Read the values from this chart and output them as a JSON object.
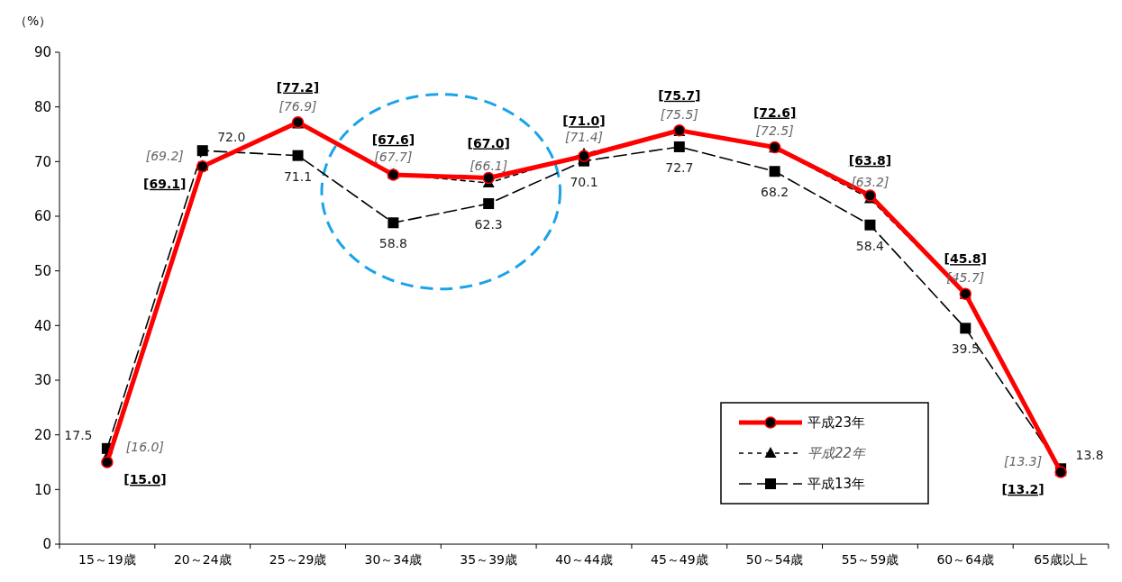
{
  "chart_data": {
    "type": "line",
    "ylabel": "（%）",
    "categories": [
      "15～19歳",
      "20～24歳",
      "25～29歳",
      "30～34歳",
      "35～39歳",
      "40～44歳",
      "45～49歳",
      "50～54歳",
      "55～59歳",
      "60～64歳",
      "65歳以上"
    ],
    "ylim": [
      0,
      90
    ],
    "yticks": [
      0,
      10,
      20,
      30,
      40,
      50,
      60,
      70,
      80,
      90
    ],
    "legend": "bottom right",
    "series": [
      {
        "name": "平成23年",
        "color": "#ff0000",
        "marker": "circle",
        "line_style": "solid",
        "values": [
          15.0,
          69.1,
          77.2,
          67.6,
          67.0,
          71.0,
          75.7,
          72.6,
          63.8,
          45.8,
          13.2
        ],
        "value_labels": [
          "[15.0]",
          "[69.1]",
          "[77.2]",
          "[67.6]",
          "[67.0]",
          "[71.0]",
          "[75.7]",
          "[72.6]",
          "[63.8]",
          "[45.8]",
          "[13.2]"
        ]
      },
      {
        "name": "平成22年",
        "color": "#000000",
        "marker": "triangle",
        "line_style": "dotted",
        "values": [
          16.0,
          69.2,
          76.9,
          67.7,
          66.1,
          71.4,
          75.5,
          72.5,
          63.2,
          45.7,
          13.3
        ],
        "value_labels": [
          "[16.0]",
          "[69.2]",
          "[76.9]",
          "[67.7]",
          "[66.1]",
          "[71.4]",
          "[75.5]",
          "[72.5]",
          "[63.2]",
          "[45.7]",
          "[13.3]"
        ]
      },
      {
        "name": "平成13年",
        "color": "#000000",
        "marker": "square",
        "line_style": "dashed",
        "values": [
          17.5,
          72.0,
          71.1,
          58.8,
          62.3,
          70.1,
          72.7,
          68.2,
          58.4,
          39.5,
          13.8
        ],
        "value_labels": [
          "17.5",
          "72.0",
          "71.1",
          "58.8",
          "62.3",
          "70.1",
          "72.7",
          "68.2",
          "58.4",
          "39.5",
          "13.8"
        ]
      }
    ]
  }
}
